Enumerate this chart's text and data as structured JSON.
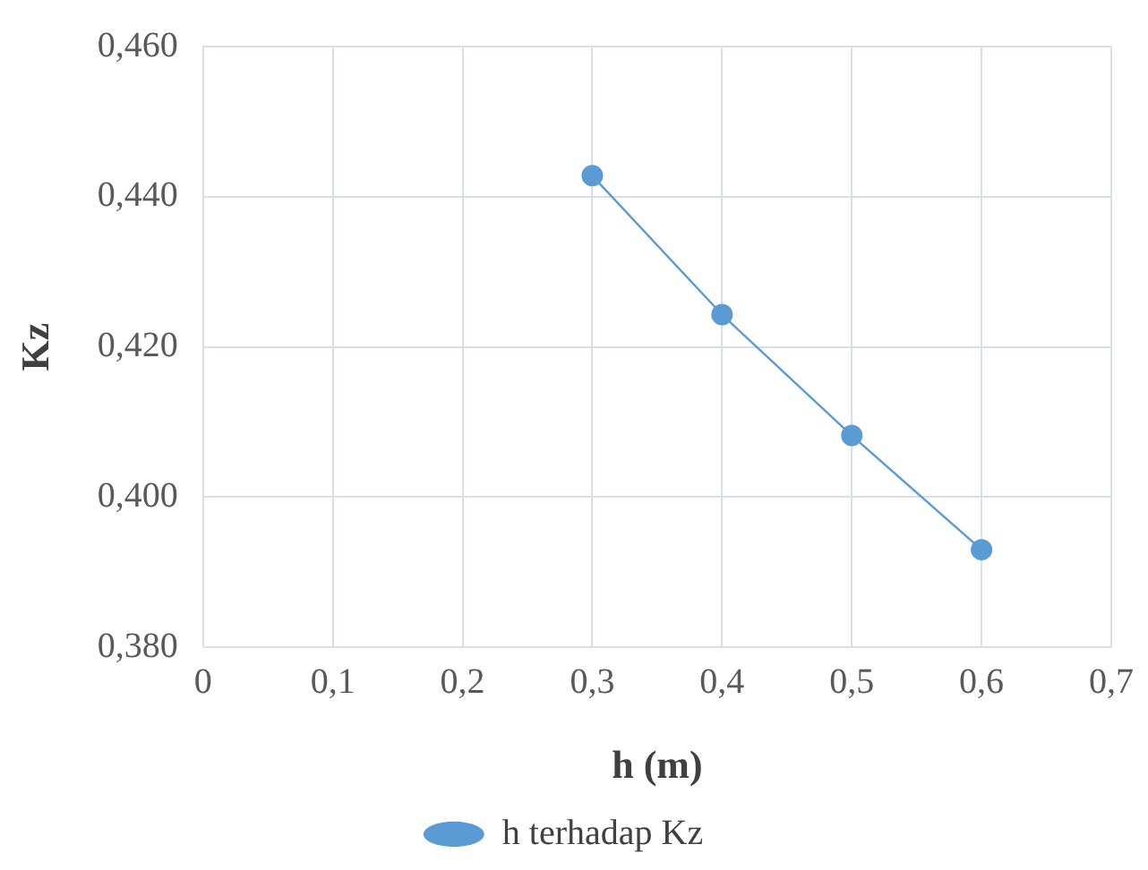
{
  "chart_data": {
    "type": "line",
    "xlabel": "h (m)",
    "ylabel": "Kz",
    "x": [
      0.3,
      0.4,
      0.5,
      0.6
    ],
    "series": [
      {
        "name": "h terhadap Kz",
        "color": "#5b9bd5",
        "values": [
          0.4428,
          0.4243,
          0.4082,
          0.393
        ]
      }
    ],
    "xlim": [
      0,
      0.7
    ],
    "xticks": [
      {
        "value": 0,
        "label": "0"
      },
      {
        "value": 0.1,
        "label": "0,1"
      },
      {
        "value": 0.2,
        "label": "0,2"
      },
      {
        "value": 0.3,
        "label": "0,3"
      },
      {
        "value": 0.4,
        "label": "0,4"
      },
      {
        "value": 0.5,
        "label": "0,5"
      },
      {
        "value": 0.6,
        "label": "0,6"
      },
      {
        "value": 0.7,
        "label": "0,7"
      }
    ],
    "ylim": [
      0.38,
      0.46
    ],
    "yticks": [
      {
        "value": 0.38,
        "label": "0,380"
      },
      {
        "value": 0.4,
        "label": "0,400"
      },
      {
        "value": 0.42,
        "label": "0,420"
      },
      {
        "value": 0.44,
        "label": "0,440"
      },
      {
        "value": 0.46,
        "label": "0,460"
      }
    ],
    "grid": true,
    "legend": "bottom",
    "marker": "circle",
    "line_style": "solid"
  }
}
